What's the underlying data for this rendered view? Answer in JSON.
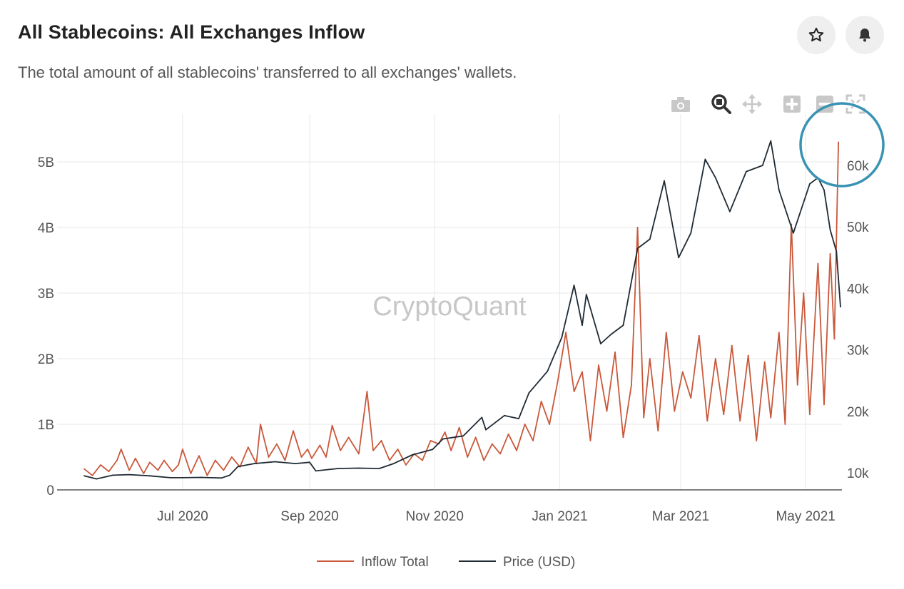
{
  "header": {
    "title": "All Stablecoins: All Exchanges Inflow",
    "subtitle": "The total amount of all stablecoins' transferred to all exchanges' wallets."
  },
  "buttons": {
    "favorite_icon": "star-icon",
    "alert_icon": "bell-icon"
  },
  "modebar": [
    "camera-icon",
    "zoom-icon",
    "pan-icon",
    "zoom-in-icon",
    "zoom-out-icon",
    "autoscale-icon"
  ],
  "watermark": "CryptoQuant",
  "colors": {
    "inflow": "#c9583a",
    "price": "#1f2a33",
    "highlight": "#3a93b3"
  },
  "chart_data": {
    "type": "line",
    "x_range": [
      "2020-05-14",
      "2021-05-18"
    ],
    "x_ticks": [
      "2020-07-01",
      "2020-09-01",
      "2020-11-01",
      "2021-01-01",
      "2021-03-01",
      "2021-05-01"
    ],
    "x_tick_labels": [
      "Jul 2020",
      "Sep 2020",
      "Nov 2020",
      "Jan 2021",
      "Mar 2021",
      "May 2021"
    ],
    "y_left": {
      "range": [
        0,
        5.5
      ],
      "ticks": [
        0,
        1,
        2,
        3,
        4,
        5
      ],
      "tick_labels": [
        "0",
        "1B",
        "2B",
        "3B",
        "4B",
        "5B"
      ]
    },
    "y_right": {
      "range": [
        7000,
        69000
      ],
      "ticks": [
        10000,
        20000,
        30000,
        40000,
        50000,
        60000
      ],
      "tick_labels": [
        "10k",
        "20k",
        "30k",
        "40k",
        "50k",
        "60k"
      ]
    },
    "grid": true,
    "legend": "bottom-center",
    "series": [
      {
        "name": "Inflow Total",
        "axis": "left",
        "unit": "B",
        "points": [
          [
            "2020-05-14",
            0.32
          ],
          [
            "2020-05-18",
            0.22
          ],
          [
            "2020-05-22",
            0.38
          ],
          [
            "2020-05-26",
            0.28
          ],
          [
            "2020-05-30",
            0.45
          ],
          [
            "2020-06-01",
            0.62
          ],
          [
            "2020-06-05",
            0.3
          ],
          [
            "2020-06-08",
            0.48
          ],
          [
            "2020-06-12",
            0.25
          ],
          [
            "2020-06-15",
            0.42
          ],
          [
            "2020-06-19",
            0.3
          ],
          [
            "2020-06-22",
            0.45
          ],
          [
            "2020-06-26",
            0.28
          ],
          [
            "2020-06-29",
            0.38
          ],
          [
            "2020-07-01",
            0.62
          ],
          [
            "2020-07-05",
            0.25
          ],
          [
            "2020-07-09",
            0.52
          ],
          [
            "2020-07-13",
            0.22
          ],
          [
            "2020-07-17",
            0.45
          ],
          [
            "2020-07-21",
            0.3
          ],
          [
            "2020-07-25",
            0.5
          ],
          [
            "2020-07-29",
            0.35
          ],
          [
            "2020-08-02",
            0.65
          ],
          [
            "2020-08-06",
            0.4
          ],
          [
            "2020-08-08",
            1.0
          ],
          [
            "2020-08-12",
            0.5
          ],
          [
            "2020-08-16",
            0.7
          ],
          [
            "2020-08-20",
            0.45
          ],
          [
            "2020-08-24",
            0.9
          ],
          [
            "2020-08-28",
            0.5
          ],
          [
            "2020-08-31",
            0.62
          ],
          [
            "2020-09-02",
            0.48
          ],
          [
            "2020-09-06",
            0.68
          ],
          [
            "2020-09-09",
            0.5
          ],
          [
            "2020-09-12",
            0.98
          ],
          [
            "2020-09-16",
            0.6
          ],
          [
            "2020-09-20",
            0.8
          ],
          [
            "2020-09-25",
            0.55
          ],
          [
            "2020-09-29",
            1.5
          ],
          [
            "2020-10-02",
            0.6
          ],
          [
            "2020-10-06",
            0.75
          ],
          [
            "2020-10-10",
            0.45
          ],
          [
            "2020-10-14",
            0.62
          ],
          [
            "2020-10-18",
            0.38
          ],
          [
            "2020-10-22",
            0.55
          ],
          [
            "2020-10-26",
            0.45
          ],
          [
            "2020-10-30",
            0.75
          ],
          [
            "2020-11-03",
            0.7
          ],
          [
            "2020-11-06",
            0.88
          ],
          [
            "2020-11-09",
            0.6
          ],
          [
            "2020-11-13",
            0.95
          ],
          [
            "2020-11-17",
            0.5
          ],
          [
            "2020-11-21",
            0.8
          ],
          [
            "2020-11-25",
            0.45
          ],
          [
            "2020-11-29",
            0.7
          ],
          [
            "2020-12-03",
            0.55
          ],
          [
            "2020-12-07",
            0.85
          ],
          [
            "2020-12-11",
            0.6
          ],
          [
            "2020-12-15",
            1.0
          ],
          [
            "2020-12-19",
            0.75
          ],
          [
            "2020-12-23",
            1.35
          ],
          [
            "2020-12-27",
            1.0
          ],
          [
            "2020-12-31",
            1.65
          ],
          [
            "2021-01-04",
            2.4
          ],
          [
            "2021-01-08",
            1.5
          ],
          [
            "2021-01-12",
            1.8
          ],
          [
            "2021-01-16",
            0.75
          ],
          [
            "2021-01-20",
            1.9
          ],
          [
            "2021-01-24",
            1.2
          ],
          [
            "2021-01-28",
            2.1
          ],
          [
            "2021-02-01",
            0.8
          ],
          [
            "2021-02-05",
            1.6
          ],
          [
            "2021-02-08",
            4.0
          ],
          [
            "2021-02-11",
            1.1
          ],
          [
            "2021-02-14",
            2.0
          ],
          [
            "2021-02-18",
            0.9
          ],
          [
            "2021-02-22",
            2.4
          ],
          [
            "2021-02-26",
            1.2
          ],
          [
            "2021-03-02",
            1.8
          ],
          [
            "2021-03-06",
            1.4
          ],
          [
            "2021-03-10",
            2.35
          ],
          [
            "2021-03-14",
            1.05
          ],
          [
            "2021-03-18",
            2.0
          ],
          [
            "2021-03-22",
            1.15
          ],
          [
            "2021-03-26",
            2.2
          ],
          [
            "2021-03-30",
            1.05
          ],
          [
            "2021-04-03",
            2.05
          ],
          [
            "2021-04-07",
            0.75
          ],
          [
            "2021-04-11",
            1.95
          ],
          [
            "2021-04-14",
            1.1
          ],
          [
            "2021-04-18",
            2.4
          ],
          [
            "2021-04-21",
            1.0
          ],
          [
            "2021-04-24",
            4.05
          ],
          [
            "2021-04-27",
            1.6
          ],
          [
            "2021-04-30",
            3.0
          ],
          [
            "2021-05-03",
            1.15
          ],
          [
            "2021-05-07",
            3.45
          ],
          [
            "2021-05-10",
            1.3
          ],
          [
            "2021-05-13",
            3.6
          ],
          [
            "2021-05-15",
            2.3
          ],
          [
            "2021-05-17",
            5.3
          ]
        ]
      },
      {
        "name": "Price (USD)",
        "axis": "right",
        "unit": "USD",
        "points": [
          [
            "2020-05-14",
            9500
          ],
          [
            "2020-05-20",
            9000
          ],
          [
            "2020-05-28",
            9600
          ],
          [
            "2020-06-05",
            9700
          ],
          [
            "2020-06-15",
            9500
          ],
          [
            "2020-06-25",
            9200
          ],
          [
            "2020-07-01",
            9200
          ],
          [
            "2020-07-10",
            9250
          ],
          [
            "2020-07-20",
            9150
          ],
          [
            "2020-07-24",
            9600
          ],
          [
            "2020-07-28",
            11000
          ],
          [
            "2020-08-05",
            11500
          ],
          [
            "2020-08-15",
            11800
          ],
          [
            "2020-08-25",
            11500
          ],
          [
            "2020-09-01",
            11700
          ],
          [
            "2020-09-04",
            10300
          ],
          [
            "2020-09-15",
            10700
          ],
          [
            "2020-09-25",
            10750
          ],
          [
            "2020-10-05",
            10700
          ],
          [
            "2020-10-12",
            11500
          ],
          [
            "2020-10-21",
            12900
          ],
          [
            "2020-10-31",
            13800
          ],
          [
            "2020-11-05",
            15500
          ],
          [
            "2020-11-15",
            16000
          ],
          [
            "2020-11-24",
            19000
          ],
          [
            "2020-11-26",
            17000
          ],
          [
            "2020-12-05",
            19300
          ],
          [
            "2020-12-12",
            18800
          ],
          [
            "2020-12-17",
            23000
          ],
          [
            "2020-12-26",
            26500
          ],
          [
            "2021-01-02",
            32000
          ],
          [
            "2021-01-08",
            40500
          ],
          [
            "2021-01-12",
            34000
          ],
          [
            "2021-01-14",
            39000
          ],
          [
            "2021-01-21",
            31000
          ],
          [
            "2021-01-26",
            32500
          ],
          [
            "2021-02-01",
            34000
          ],
          [
            "2021-02-08",
            46500
          ],
          [
            "2021-02-14",
            48000
          ],
          [
            "2021-02-21",
            57500
          ],
          [
            "2021-02-28",
            45000
          ],
          [
            "2021-03-06",
            49000
          ],
          [
            "2021-03-13",
            61000
          ],
          [
            "2021-03-18",
            58000
          ],
          [
            "2021-03-25",
            52500
          ],
          [
            "2021-04-02",
            59000
          ],
          [
            "2021-04-10",
            60000
          ],
          [
            "2021-04-14",
            64000
          ],
          [
            "2021-04-18",
            56000
          ],
          [
            "2021-04-25",
            49000
          ],
          [
            "2021-05-03",
            57000
          ],
          [
            "2021-05-07",
            58000
          ],
          [
            "2021-05-10",
            56000
          ],
          [
            "2021-05-13",
            49500
          ],
          [
            "2021-05-16",
            46000
          ],
          [
            "2021-05-18",
            37000
          ]
        ]
      }
    ]
  }
}
